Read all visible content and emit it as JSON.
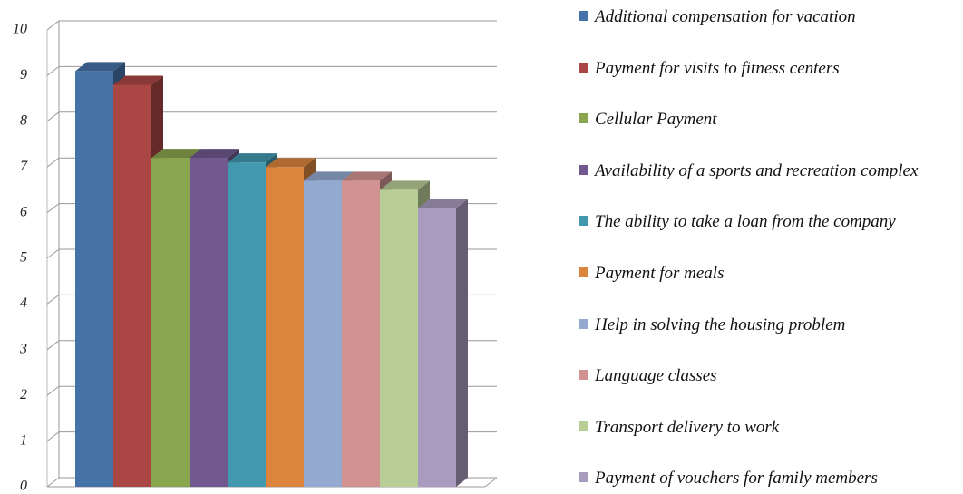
{
  "chart_data": {
    "type": "bar3d",
    "categories": [
      null
    ],
    "series": [
      {
        "name": "Additional compensation for vacation",
        "color": "#4572A7",
        "values": [
          9.1
        ]
      },
      {
        "name": "Payment for visits to fitness centers",
        "color": "#AA4643",
        "values": [
          8.8
        ]
      },
      {
        "name": "Cellular Payment",
        "color": "#89A54E",
        "values": [
          7.2
        ]
      },
      {
        "name": "Availability of a sports and recreation complex",
        "color": "#71588F",
        "values": [
          7.2
        ]
      },
      {
        "name": "The ability to take a loan from the company",
        "color": "#4198AF",
        "values": [
          7.1
        ]
      },
      {
        "name": "Payment for meals",
        "color": "#DB843D",
        "values": [
          7.0
        ]
      },
      {
        "name": "Help in solving the housing problem",
        "color": "#93A9CF",
        "values": [
          6.7
        ]
      },
      {
        "name": "Language classes",
        "color": "#D19392",
        "values": [
          6.7
        ]
      },
      {
        "name": "Transport delivery to work",
        "color": "#B9CD96",
        "values": [
          6.5
        ]
      },
      {
        "name": "Payment of vouchers for family members",
        "color": "#A99BBD",
        "values": [
          6.1
        ]
      }
    ],
    "ylim": [
      0,
      10
    ],
    "yticks": [
      0,
      1,
      2,
      3,
      4,
      5,
      6,
      7,
      8,
      9,
      10
    ],
    "grid": true,
    "legend": "right"
  }
}
